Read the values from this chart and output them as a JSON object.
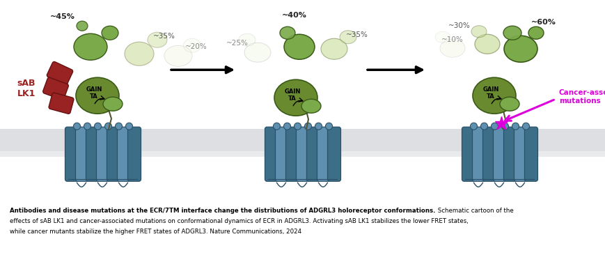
{
  "bg_color": "#ffffff",
  "tm_color": "#6090b0",
  "tm_dark": "#3d6e87",
  "gain_color": "#6a8a30",
  "ecr_dark": "#7aaa4a",
  "ecr_med": "#aac870",
  "ecr_light": "#c8dc98",
  "ecr_faint": "#ddeebb",
  "ecr_ghost": "#eef6dd",
  "sab_color": "#992222",
  "magenta_color": "#dd00dd",
  "gray_bg": "#dedfe2",
  "gray_bg2": "#e8eaec",
  "caption_bold": "Antibodies and disease mutations at the ECR/7TM interface change the distributions of ADGRL3 holoreceptor conformations.",
  "caption_normal": " Schematic cartoon of the effects of sAB LK1 and cancer-associated mutations on conformational dynamics of ECR in ADGRL3. Activating sAB LK1 stabilizes the lower FRET states, while cancer mutants stabilize the higher FRET states of ADGRL3. Nature Communications, 2024",
  "panel1_pct": [
    "~45%",
    "~35%",
    "~20%"
  ],
  "panel2_pct": [
    "~25%",
    "~40%",
    "~35%"
  ],
  "panel3_pct": [
    "~10%",
    "~30%",
    "~60%"
  ],
  "sab_label": "sAB\nLK1",
  "cancer_label": "Cancer-associated\nmutations",
  "gain_label": "GAIN\nTA"
}
